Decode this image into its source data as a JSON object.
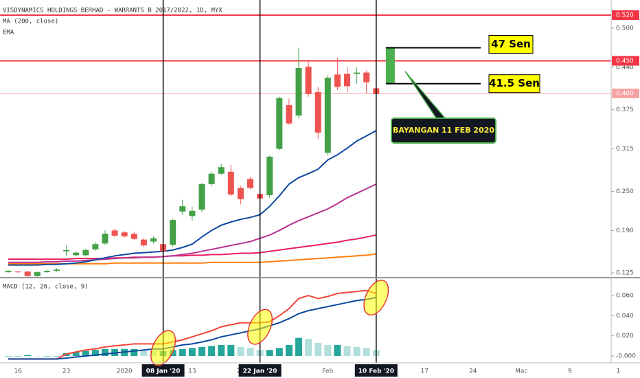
{
  "chart_data": [
    {
      "type": "candlestick",
      "title": "VISDYNAMICS HOLDINGS BERHAD - WARRANTS B 2017/2022, 1D, MYX",
      "indicator_labels": [
        "MA (200, close)",
        "EMA"
      ],
      "categories": [
        null,
        "16",
        null,
        null,
        null,
        null,
        "23",
        null,
        null,
        null,
        null,
        null,
        "2020",
        null,
        null,
        null,
        "08 Jan '20",
        null,
        null,
        "13",
        null,
        null,
        null,
        null,
        "20",
        null,
        "22 Jan '20",
        null,
        null,
        null,
        null,
        null,
        null,
        "Feb",
        null,
        null,
        null,
        null,
        "10 Feb '20",
        null,
        null,
        null,
        null,
        "17",
        null,
        null,
        null,
        null,
        "24",
        null,
        null,
        null,
        null,
        "Mac",
        null,
        null,
        null,
        null,
        "9",
        null,
        null,
        null,
        null,
        "1"
      ],
      "open": [
        0.126,
        0.127,
        0.127,
        0.12,
        0.126,
        0.128,
        0.158,
        0.152,
        0.152,
        0.161,
        0.17,
        0.19,
        0.187,
        0.185,
        0.176,
        0.173,
        0.169,
        0.168,
        0.219,
        0.212,
        0.222,
        0.261,
        0.277,
        0.28,
        0.255,
        0.269,
        0.246,
        0.244,
        0.315,
        0.382,
        0.366,
        0.441,
        0.402,
        0.309,
        0.429,
        0.43,
        0.43,
        0.432,
        0.408,
        null,
        null,
        null,
        null,
        null,
        null,
        null,
        null,
        null,
        null,
        null,
        null,
        null,
        null,
        null,
        null,
        null,
        null,
        null,
        null,
        null,
        null,
        null,
        null,
        null
      ],
      "high": [
        0.129,
        0.128,
        0.128,
        0.127,
        0.13,
        0.132,
        0.167,
        0.158,
        0.162,
        0.172,
        0.19,
        0.193,
        0.189,
        0.188,
        0.178,
        0.181,
        0.172,
        0.208,
        0.237,
        0.226,
        0.263,
        0.28,
        0.292,
        0.29,
        0.258,
        0.272,
        0.26,
        0.305,
        0.395,
        0.392,
        0.47,
        0.45,
        0.41,
        0.428,
        0.455,
        0.44,
        0.44,
        0.435,
        0.41,
        null,
        null,
        null,
        null,
        null,
        null,
        null,
        null,
        null,
        null,
        null,
        null,
        null,
        null,
        null,
        null,
        null,
        null,
        null,
        null,
        null,
        null,
        null,
        null,
        null
      ],
      "low": [
        0.125,
        0.125,
        0.119,
        0.119,
        0.125,
        0.127,
        0.151,
        0.15,
        0.15,
        0.159,
        0.168,
        0.18,
        0.179,
        0.175,
        0.165,
        0.17,
        0.156,
        0.165,
        0.214,
        0.205,
        0.218,
        0.258,
        0.275,
        0.243,
        0.23,
        0.253,
        0.236,
        0.24,
        0.313,
        0.352,
        0.362,
        0.395,
        0.33,
        0.305,
        0.405,
        0.402,
        0.415,
        0.4,
        0.398,
        null,
        null,
        null,
        null,
        null,
        null,
        null,
        null,
        null,
        null,
        null,
        null,
        null,
        null,
        null,
        null,
        null,
        null,
        null,
        null,
        null,
        null,
        null,
        null,
        null
      ],
      "close": [
        0.128,
        0.126,
        0.12,
        0.126,
        0.128,
        0.13,
        0.16,
        0.156,
        0.16,
        0.169,
        0.185,
        0.182,
        0.181,
        0.177,
        0.167,
        0.178,
        0.158,
        0.206,
        0.227,
        0.22,
        0.261,
        0.277,
        0.287,
        0.245,
        0.238,
        0.255,
        0.239,
        0.303,
        0.393,
        0.354,
        0.439,
        0.399,
        0.34,
        0.424,
        0.41,
        0.411,
        0.432,
        0.417,
        0.399,
        null,
        null,
        null,
        null,
        null,
        null,
        null,
        null,
        null,
        null,
        null,
        null,
        null,
        null,
        null,
        null,
        null,
        null,
        null,
        null,
        null,
        null,
        null,
        null,
        null
      ],
      "up_color": "#43a047",
      "down_color": "#ef5350",
      "overlays": [
        {
          "color": "#ff7f0e",
          "values": [
            0.139,
            0.139,
            0.139,
            0.139,
            0.139,
            0.139,
            0.139,
            0.139,
            0.139,
            0.139,
            0.139,
            0.14,
            0.14,
            0.14,
            0.14,
            0.14,
            0.14,
            0.14,
            0.14,
            0.14,
            0.14,
            0.141,
            0.141,
            0.141,
            0.141,
            0.141,
            0.141,
            0.142,
            0.143,
            0.144,
            0.145,
            0.146,
            0.147,
            0.148,
            0.149,
            0.15,
            0.151,
            0.152,
            0.154,
            null,
            null,
            null,
            null,
            null,
            null,
            null,
            null,
            null,
            null,
            null,
            null,
            null,
            null,
            null,
            null,
            null,
            null,
            null,
            null,
            null,
            null,
            null,
            null,
            null
          ]
        },
        {
          "color": "#e91e63",
          "values": [
            0.146,
            0.146,
            0.146,
            0.146,
            0.146,
            0.146,
            0.146,
            0.147,
            0.147,
            0.147,
            0.147,
            0.148,
            0.148,
            0.149,
            0.149,
            0.149,
            0.15,
            0.151,
            0.151,
            0.152,
            0.152,
            0.153,
            0.153,
            0.154,
            0.155,
            0.155,
            0.156,
            0.158,
            0.16,
            0.162,
            0.164,
            0.166,
            0.168,
            0.17,
            0.172,
            0.175,
            0.177,
            0.18,
            0.183,
            null,
            null,
            null,
            null,
            null,
            null,
            null,
            null,
            null,
            null,
            null,
            null,
            null,
            null,
            null,
            null,
            null,
            null,
            null,
            null,
            null,
            null,
            null,
            null,
            null
          ]
        },
        {
          "color": "#b8328f",
          "values": [
            0.141,
            0.141,
            0.141,
            0.141,
            0.142,
            0.142,
            0.143,
            0.143,
            0.144,
            0.145,
            0.146,
            0.147,
            0.148,
            0.148,
            0.149,
            0.149,
            0.15,
            0.151,
            0.153,
            0.155,
            0.158,
            0.161,
            0.164,
            0.167,
            0.17,
            0.173,
            0.178,
            0.183,
            0.19,
            0.198,
            0.205,
            0.211,
            0.217,
            0.223,
            0.231,
            0.24,
            0.247,
            0.254,
            0.261,
            null,
            null,
            null,
            null,
            null,
            null,
            null,
            null,
            null,
            null,
            null,
            null,
            null,
            null,
            null,
            null,
            null,
            null,
            null,
            null,
            null,
            null,
            null,
            null,
            null
          ]
        },
        {
          "color": "#0d47a1",
          "values": [
            0.137,
            0.137,
            0.137,
            0.137,
            0.138,
            0.138,
            0.139,
            0.14,
            0.142,
            0.145,
            0.148,
            0.151,
            0.153,
            0.155,
            0.156,
            0.157,
            0.158,
            0.16,
            0.164,
            0.169,
            0.18,
            0.19,
            0.198,
            0.203,
            0.207,
            0.21,
            0.214,
            0.227,
            0.243,
            0.261,
            0.271,
            0.277,
            0.284,
            0.298,
            0.306,
            0.316,
            0.327,
            0.335,
            0.343,
            null,
            null,
            null,
            null,
            null,
            null,
            null,
            null,
            null,
            null,
            null,
            null,
            null,
            null,
            null,
            null,
            null,
            null,
            null,
            null,
            null,
            null,
            null,
            null,
            null
          ]
        }
      ],
      "ylim": [
        0.1187,
        0.5432
      ],
      "yticks": [
        {
          "value": 0.5,
          "label": "0.500"
        },
        {
          "value": 0.44,
          "label": "0.440"
        },
        {
          "value": 0.375,
          "label": "0.375"
        },
        {
          "value": 0.315,
          "label": "0.315"
        },
        {
          "value": 0.25,
          "label": "0.250"
        },
        {
          "value": 0.19,
          "label": "0.190"
        },
        {
          "value": 0.125,
          "label": "0.125"
        }
      ],
      "hlines": [
        {
          "value": 0.52,
          "label": "0.520",
          "color": "#f23645"
        },
        {
          "value": 0.45,
          "label": "0.450",
          "color": "#f23645"
        },
        {
          "value": 0.4,
          "label": "0.400",
          "color": "#f7a3a3"
        }
      ],
      "vline_categories": [
        "08 Jan '20",
        "22 Jan '20",
        "10 Feb '20"
      ],
      "projection": {
        "high": 0.47,
        "high_label": "47 Sen",
        "low": 0.415,
        "low_label": "41.5 Sen",
        "note": "BAYANGAN 11 FEB 2020",
        "color": "#4caf50"
      }
    },
    {
      "type": "macd",
      "title": "MACD (12, 26, close, 9)",
      "series": [
        {
          "color": "#f44336",
          "values": [
            -0.003,
            -0.003,
            -0.003,
            -0.003,
            -0.003,
            -0.003,
            0.002,
            0.004,
            0.006,
            0.007,
            0.009,
            0.01,
            0.011,
            0.012,
            0.012,
            0.012,
            0.012,
            0.014,
            0.016,
            0.019,
            0.022,
            0.025,
            0.029,
            0.031,
            0.033,
            0.033,
            0.033,
            0.034,
            0.04,
            0.047,
            0.057,
            0.06,
            0.057,
            0.059,
            0.062,
            0.063,
            0.064,
            0.065,
            0.062,
            null,
            null,
            null,
            null,
            null,
            null,
            null,
            null,
            null,
            null,
            null,
            null,
            null,
            null,
            null,
            null,
            null,
            null,
            null,
            null,
            null,
            null,
            null,
            null,
            null
          ]
        },
        {
          "color": "#0d47a1",
          "values": [
            -0.003,
            -0.003,
            -0.003,
            -0.003,
            -0.003,
            -0.003,
            -0.002,
            -0.001,
            0,
            0.001,
            0.002,
            0.003,
            0.004,
            0.005,
            0.006,
            0.007,
            0.007,
            0.009,
            0.011,
            0.012,
            0.014,
            0.016,
            0.019,
            0.021,
            0.023,
            0.025,
            0.027,
            0.03,
            0.033,
            0.037,
            0.042,
            0.045,
            0.047,
            0.049,
            0.051,
            0.053,
            0.055,
            0.056,
            0.058,
            null,
            null,
            null,
            null,
            null,
            null,
            null,
            null,
            null,
            null,
            null,
            null,
            null,
            null,
            null,
            null,
            null,
            null,
            null,
            null,
            null,
            null,
            null,
            null,
            null
          ]
        }
      ],
      "histogram": [
        0,
        0,
        0.001,
        0,
        0,
        0,
        0.003,
        0.004,
        0.005,
        0.006,
        0.007,
        0.007,
        0.007,
        0.007,
        0.006,
        0.005,
        0.005,
        0.006,
        0.007,
        0.008,
        0.009,
        0.01,
        0.011,
        0.011,
        0.009,
        0.008,
        0.006,
        0.006,
        0.008,
        0.011,
        0.018,
        0.017,
        0.013,
        0.011,
        0.011,
        0.01,
        0.009,
        0.008,
        0.006,
        null,
        null,
        null,
        null,
        null,
        null,
        null,
        null,
        null,
        null,
        null,
        null,
        null,
        null,
        null,
        null,
        null,
        null,
        null,
        null,
        null,
        null,
        null,
        null,
        null
      ],
      "histogram_colors": [
        "#26a69a",
        "#b2dfdb"
      ],
      "ylim": [
        -0.0068,
        0.077
      ],
      "yticks": [
        {
          "value": 0.06,
          "label": "0.060"
        },
        {
          "value": 0.04,
          "label": "0.040"
        },
        {
          "value": 0.02,
          "label": "0.020"
        },
        {
          "value": 0,
          "label": "-0.000"
        }
      ]
    }
  ]
}
